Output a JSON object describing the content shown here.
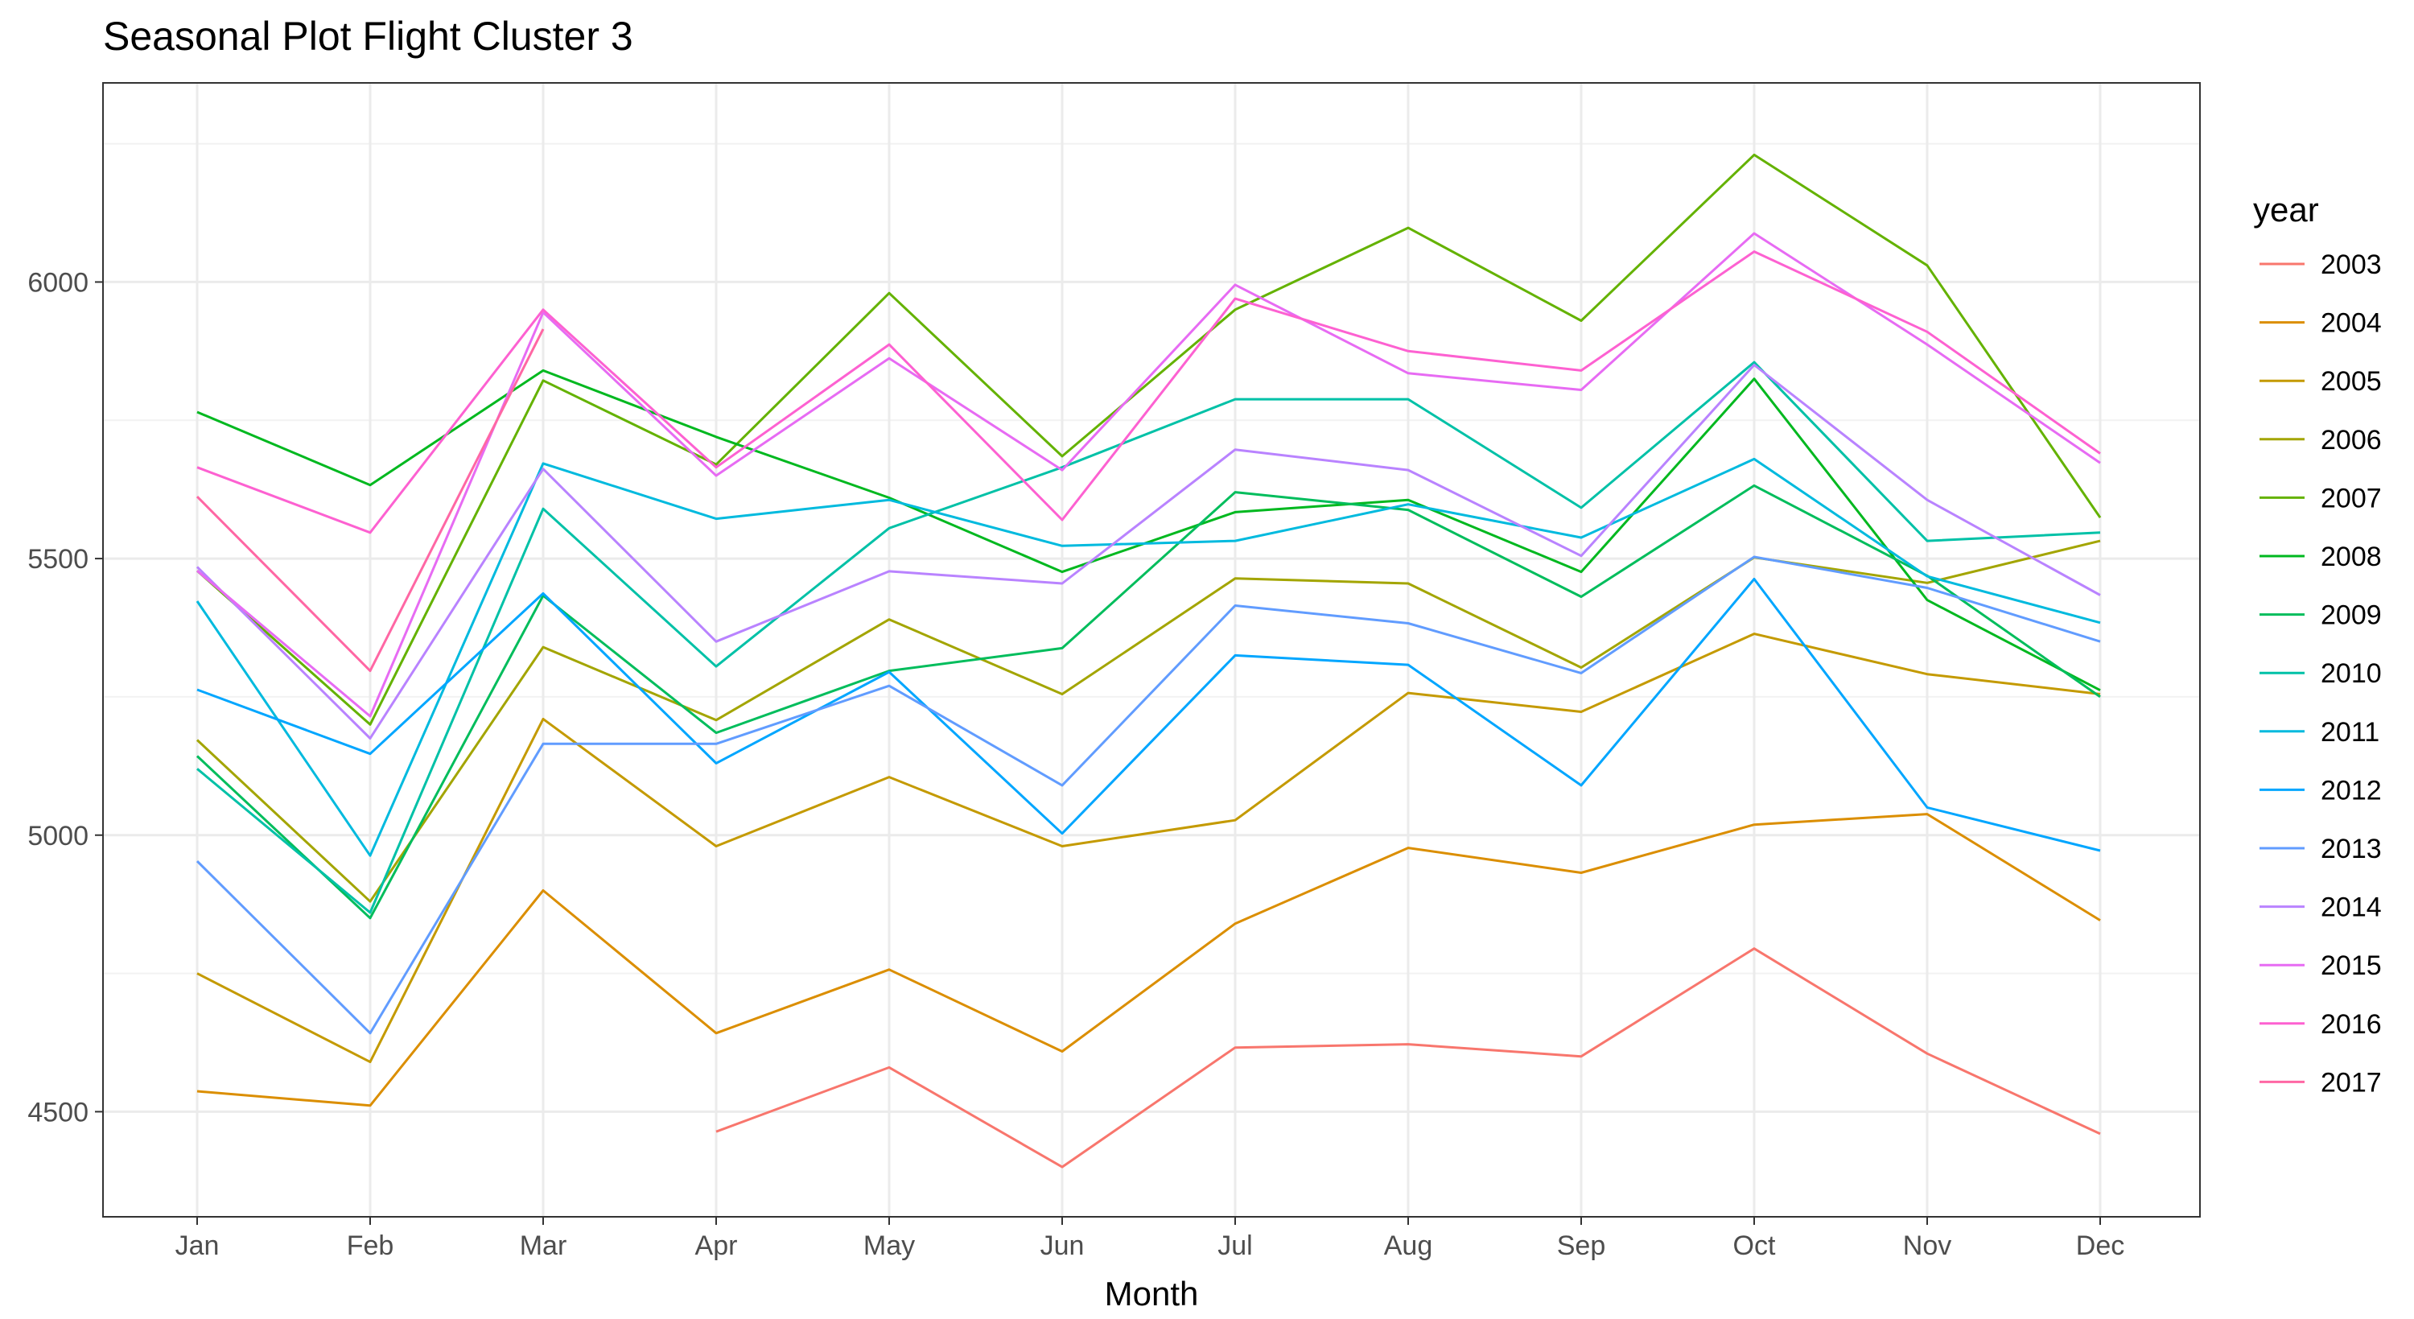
{
  "chart_data": {
    "type": "line",
    "title": "Seasonal Plot Flight Cluster 3",
    "xlabel": "Month",
    "ylabel": "",
    "categories": [
      "Jan",
      "Feb",
      "Mar",
      "Apr",
      "May",
      "Jun",
      "Jul",
      "Aug",
      "Sep",
      "Oct",
      "Nov",
      "Dec"
    ],
    "ylim": [
      4310,
      6360
    ],
    "yticks": [
      4500,
      5000,
      5500,
      6000
    ],
    "ytick_labels": [
      "4500",
      "5000",
      "5500",
      "6000"
    ],
    "grid": true,
    "legend": {
      "title": "year",
      "position": "right"
    },
    "series": [
      {
        "name": "2003",
        "color": "#F8766D",
        "values": [
          null,
          null,
          null,
          4464,
          4580,
          4400,
          4616,
          4622,
          4600,
          4795,
          4605,
          4460
        ]
      },
      {
        "name": "2004",
        "color": "#DB8E00",
        "values": [
          4537,
          4511,
          4900,
          4642,
          4757,
          4609,
          4840,
          4977,
          4932,
          5019,
          5038,
          4846
        ]
      },
      {
        "name": "2005",
        "color": "#C49A00",
        "values": [
          4750,
          4590,
          5210,
          4980,
          5105,
          4980,
          5027,
          5257,
          5223,
          5364,
          5291,
          5255
        ]
      },
      {
        "name": "2006",
        "color": "#A3A500",
        "values": [
          5172,
          4880,
          5340,
          5208,
          5390,
          5255,
          5464,
          5455,
          5303,
          5502,
          5456,
          5532
        ]
      },
      {
        "name": "2007",
        "color": "#64B200",
        "values": [
          5478,
          5200,
          5822,
          5670,
          5980,
          5685,
          5950,
          6098,
          5930,
          6230,
          6030,
          5574
        ]
      },
      {
        "name": "2008",
        "color": "#00B81F",
        "values": [
          5765,
          5633,
          5840,
          5720,
          5610,
          5476,
          5584,
          5606,
          5476,
          5825,
          5425,
          5262
        ]
      },
      {
        "name": "2009",
        "color": "#00BD5C",
        "values": [
          5143,
          4850,
          5433,
          5185,
          5297,
          5338,
          5620,
          5588,
          5431,
          5632,
          5469,
          5250
        ]
      },
      {
        "name": "2010",
        "color": "#00C1A7",
        "values": [
          5120,
          4860,
          5590,
          5305,
          5555,
          5665,
          5788,
          5788,
          5592,
          5855,
          5532,
          5547
        ]
      },
      {
        "name": "2011",
        "color": "#00BADE",
        "values": [
          5423,
          4963,
          5672,
          5572,
          5606,
          5523,
          5532,
          5598,
          5538,
          5680,
          5468,
          5384
        ]
      },
      {
        "name": "2012",
        "color": "#00A6FF",
        "values": [
          5263,
          5147,
          5437,
          5130,
          5295,
          5003,
          5325,
          5308,
          5090,
          5463,
          5050,
          4972
        ]
      },
      {
        "name": "2013",
        "color": "#619CFF",
        "values": [
          4953,
          4642,
          5165,
          5165,
          5270,
          5090,
          5415,
          5383,
          5293,
          5503,
          5447,
          5350
        ]
      },
      {
        "name": "2014",
        "color": "#B983FF",
        "values": [
          5485,
          5175,
          5662,
          5350,
          5477,
          5455,
          5697,
          5660,
          5505,
          5850,
          5606,
          5434
        ]
      },
      {
        "name": "2015",
        "color": "#E76BF3",
        "values": [
          5478,
          5215,
          5945,
          5650,
          5862,
          5660,
          5995,
          5835,
          5805,
          6088,
          5887,
          5673
        ]
      },
      {
        "name": "2016",
        "color": "#FD61D1",
        "values": [
          5665,
          5547,
          5950,
          5665,
          5887,
          5570,
          5970,
          5875,
          5840,
          6055,
          5910,
          5690
        ]
      },
      {
        "name": "2017",
        "color": "#FF67A4",
        "values": [
          5612,
          5297,
          5915,
          null,
          null,
          null,
          null,
          null,
          null,
          null,
          null,
          null
        ]
      }
    ]
  }
}
